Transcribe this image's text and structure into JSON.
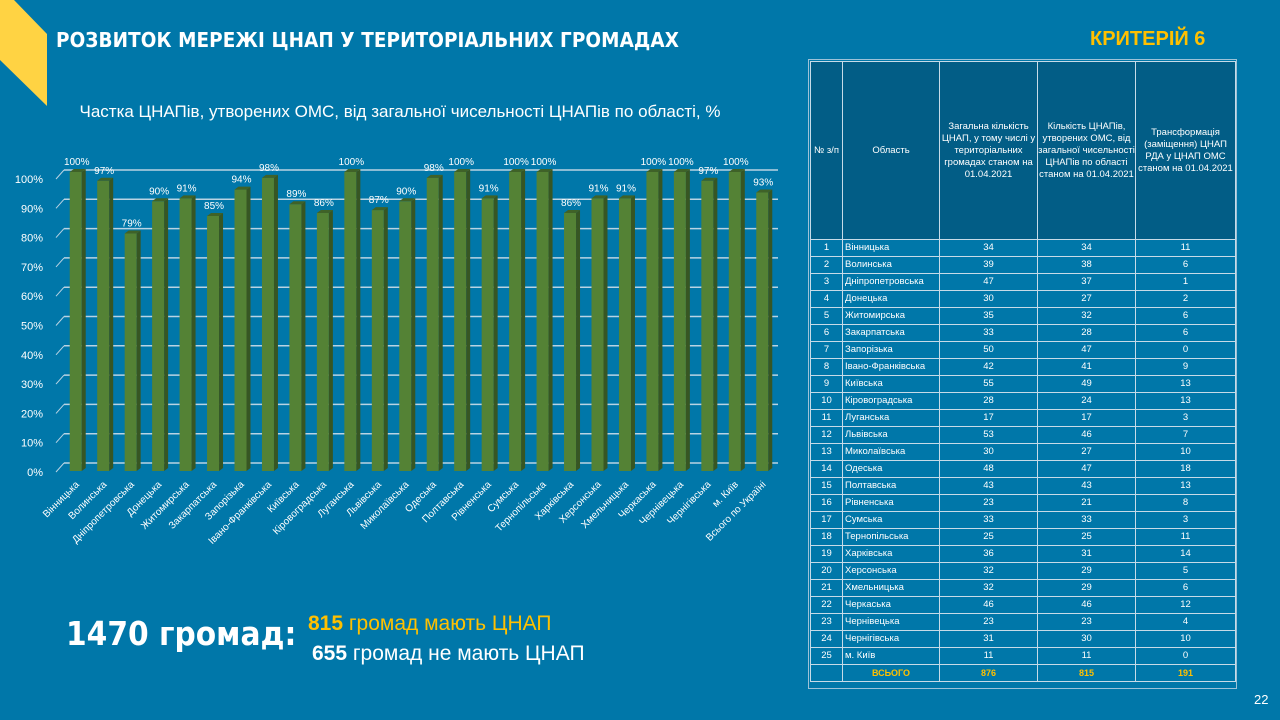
{
  "header": {
    "title": "РОЗВИТОК МЕРЕЖІ ЦНАП У ТЕРИТОРІАЛЬНИХ ГРОМАДАХ",
    "criteria": "КРИТЕРІЙ 6"
  },
  "colors": {
    "background": "#0077a9",
    "accent_yellow": "#ffc000",
    "corner_yellow": "#ffd343",
    "bar_green": "#548235",
    "table_header": "#025d86"
  },
  "chart_data": {
    "type": "bar",
    "title": "Частка ЦНАПів, утворених ОМС, від загальної чисельності ЦНАПів по області, %",
    "xlabel": "",
    "ylabel": "",
    "ylim": [
      0,
      100
    ],
    "yticks": [
      "0%",
      "10%",
      "20%",
      "30%",
      "40%",
      "50%",
      "60%",
      "70%",
      "80%",
      "90%",
      "100%"
    ],
    "grid": true,
    "legend": "none",
    "categories": [
      "Вінницька",
      "Волинська",
      "Дніпропетровська",
      "Донецька",
      "Житомирська",
      "Закарпатська",
      "Запорізька",
      "Івано-Франківська",
      "Київська",
      "Кіровоградська",
      "Луганська",
      "Львівська",
      "Миколаївська",
      "Одеська",
      "Полтавська",
      "Рівненська",
      "Сумська",
      "Тернопільська",
      "Харківська",
      "Херсонська",
      "Хмельницька",
      "Черкаська",
      "Чернівецька",
      "Чернігівська",
      "м. Київ",
      "Всього по Україні"
    ],
    "values": [
      100,
      97,
      79,
      90,
      91,
      85,
      94,
      98,
      89,
      86,
      100,
      87,
      90,
      98,
      100,
      91,
      100,
      100,
      86,
      91,
      91,
      100,
      100,
      97,
      100,
      93
    ],
    "labels": [
      "100%",
      "97%",
      "79%",
      "90%",
      "91%",
      "85%",
      "94%",
      "98%",
      "89%",
      "86%",
      "100%",
      "87%",
      "90%",
      "98%",
      "100%",
      "91%",
      "100%",
      "100%",
      "86%",
      "91%",
      "91%",
      "100%",
      "100%",
      "97%",
      "100%",
      "93%"
    ]
  },
  "table": {
    "headers": [
      "№ з/п",
      "Область",
      "Загальна кількість ЦНАП, у тому числі у територіальних громадах станом на 01.04.2021",
      "Кількість ЦНАПів, утворених ОМС, від загальної чисельності ЦНАПів по області станом на 01.04.2021",
      "Трансформація (заміщення) ЦНАП РДА у ЦНАП ОМС станом на 01.04.2021"
    ],
    "rows": [
      [
        "1",
        "Вінницька",
        "34",
        "34",
        "11"
      ],
      [
        "2",
        "Волинська",
        "39",
        "38",
        "6"
      ],
      [
        "3",
        "Дніпропетровська",
        "47",
        "37",
        "1"
      ],
      [
        "4",
        "Донецька",
        "30",
        "27",
        "2"
      ],
      [
        "5",
        "Житомирська",
        "35",
        "32",
        "6"
      ],
      [
        "6",
        "Закарпатська",
        "33",
        "28",
        "6"
      ],
      [
        "7",
        "Запорізька",
        "50",
        "47",
        "0"
      ],
      [
        "8",
        "Івано-Франківська",
        "42",
        "41",
        "9"
      ],
      [
        "9",
        "Київська",
        "55",
        "49",
        "13"
      ],
      [
        "10",
        "Кіровоградська",
        "28",
        "24",
        "13"
      ],
      [
        "11",
        "Луганська",
        "17",
        "17",
        "3"
      ],
      [
        "12",
        "Львівська",
        "53",
        "46",
        "7"
      ],
      [
        "13",
        "Миколаївська",
        "30",
        "27",
        "10"
      ],
      [
        "14",
        "Одеська",
        "48",
        "47",
        "18"
      ],
      [
        "15",
        "Полтавська",
        "43",
        "43",
        "13"
      ],
      [
        "16",
        "Рівненська",
        "23",
        "21",
        "8"
      ],
      [
        "17",
        "Сумська",
        "33",
        "33",
        "3"
      ],
      [
        "18",
        "Тернопільська",
        "25",
        "25",
        "11"
      ],
      [
        "19",
        "Харківська",
        "36",
        "31",
        "14"
      ],
      [
        "20",
        "Херсонська",
        "32",
        "29",
        "5"
      ],
      [
        "21",
        "Хмельницька",
        "32",
        "29",
        "6"
      ],
      [
        "22",
        "Черкаська",
        "46",
        "46",
        "12"
      ],
      [
        "23",
        "Чернівецька",
        "23",
        "23",
        "4"
      ],
      [
        "24",
        "Чернігівська",
        "31",
        "30",
        "10"
      ],
      [
        "25",
        "м. Київ",
        "11",
        "11",
        "0"
      ]
    ],
    "total": [
      "",
      "ВСЬОГО",
      "876",
      "815",
      "191"
    ]
  },
  "summary": {
    "total": "1470 громад:",
    "with_count": "815",
    "with_text": " громад мають ЦНАП",
    "without_count": "655",
    "without_text": " громад не мають ЦНАП"
  },
  "page_number": "22"
}
